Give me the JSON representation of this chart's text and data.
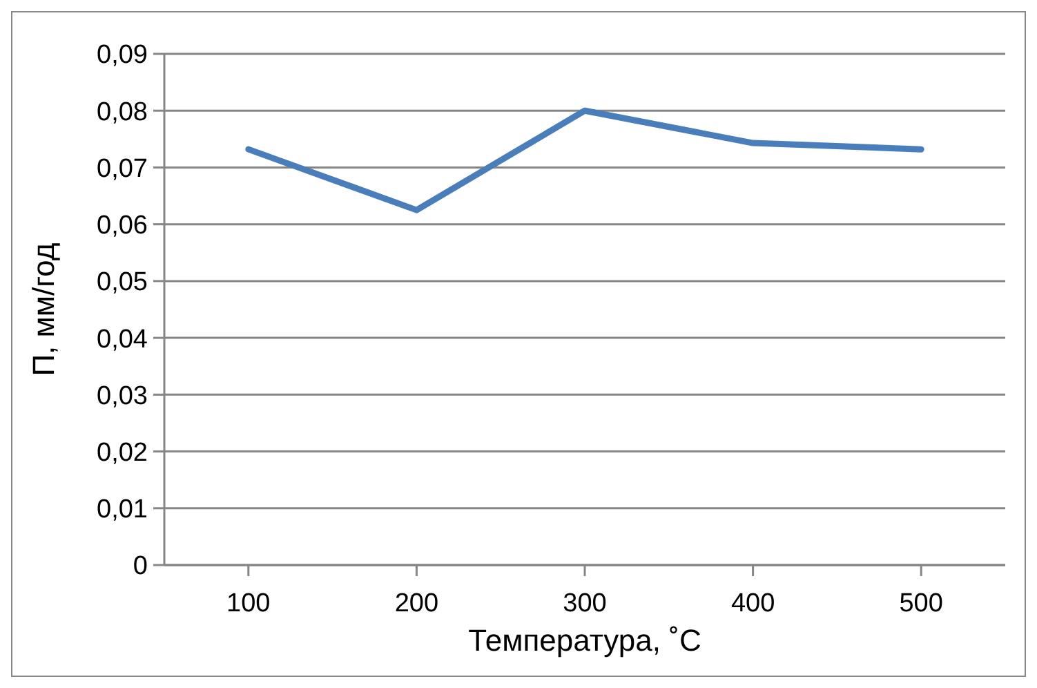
{
  "chart_data": {
    "type": "line",
    "xlabel": "Температура, ˚C",
    "ylabel": "П, мм/год",
    "categories": [
      "100",
      "200",
      "300",
      "400",
      "500"
    ],
    "series": [
      {
        "color": "#4a7ebb",
        "values": [
          0.0732,
          0.0625,
          0.08,
          0.0743,
          0.0732
        ]
      }
    ],
    "ylim": [
      0,
      0.09
    ],
    "yticks": [
      0,
      {
        "value": 0.01,
        "label": "0,01"
      },
      {
        "value": 0.02,
        "label": "0,02"
      },
      {
        "value": 0.03,
        "label": "0,03"
      },
      {
        "value": 0.04,
        "label": "0,04"
      },
      {
        "value": 0.05,
        "label": "0,05"
      },
      {
        "value": 0.06,
        "label": "0,06"
      },
      {
        "value": 0.07,
        "label": "0,07"
      },
      {
        "value": 0.08,
        "label": "0,08"
      },
      {
        "value": 0.09,
        "label": "0,09"
      }
    ],
    "grid": "y",
    "legend": false,
    "marker": "none",
    "line_style": "solid"
  }
}
